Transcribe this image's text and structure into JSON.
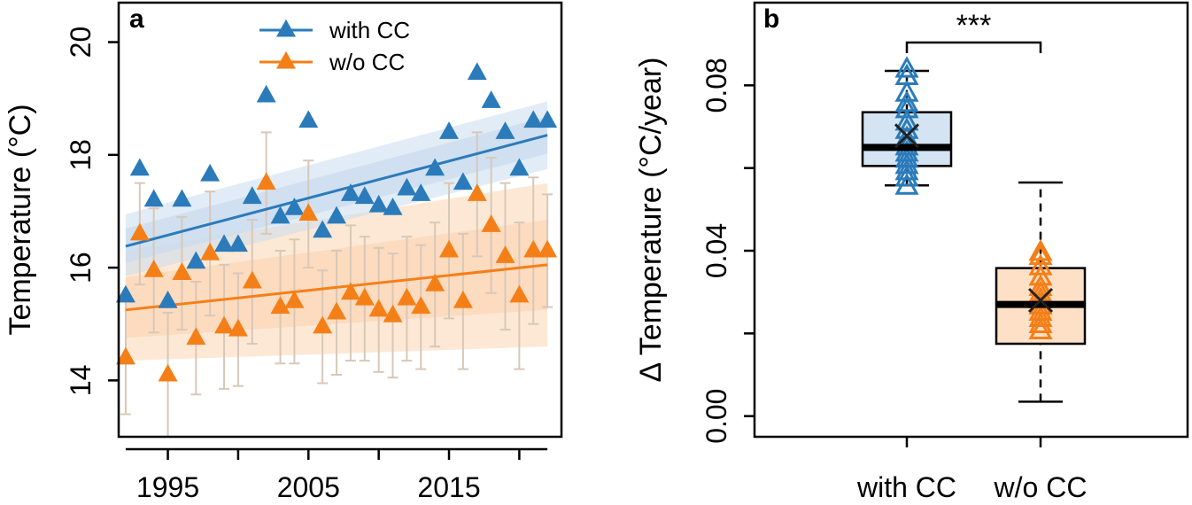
{
  "colors": {
    "with_cc": "#2b7bba",
    "wo_cc": "#f57f17",
    "with_cc_band": "#c9dcef",
    "wo_cc_band": "#fbd6b5",
    "error_bar": "#d8c8b8",
    "box_with_fill": "#d4e4f3",
    "box_wo_fill": "#fde0c6"
  },
  "chart_data": [
    {
      "type": "scatter",
      "panel": "a",
      "ylabel": "Temperature (°C)",
      "xlabel": "",
      "xlim": [
        1991.5,
        2023
      ],
      "ylim": [
        13,
        20.7
      ],
      "x_ticks": [
        1995,
        2005,
        2015
      ],
      "x_tick_labels": [
        "1995",
        "2005",
        "2015"
      ],
      "y_ticks": [
        14,
        16,
        18,
        20
      ],
      "y_tick_labels": [
        "14",
        "16",
        "18",
        "20"
      ],
      "legend": {
        "placement": "top",
        "entries": [
          "with CC",
          "w/o CC"
        ]
      },
      "x": [
        1992,
        1993,
        1994,
        1995,
        1996,
        1997,
        1998,
        1999,
        2000,
        2001,
        2002,
        2003,
        2004,
        2005,
        2006,
        2007,
        2008,
        2009,
        2010,
        2011,
        2012,
        2013,
        2014,
        2015,
        2016,
        2017,
        2018,
        2019,
        2020,
        2021,
        2022
      ],
      "series": [
        {
          "name": "with CC",
          "values": [
            15.5,
            17.75,
            17.2,
            15.4,
            17.2,
            16.1,
            17.65,
            16.4,
            16.4,
            17.25,
            19.05,
            16.9,
            17.05,
            18.6,
            16.65,
            16.9,
            17.3,
            17.25,
            17.1,
            17.05,
            17.4,
            17.3,
            17.75,
            18.4,
            17.5,
            19.45,
            18.95,
            18.4,
            17.75,
            18.6,
            18.6
          ],
          "trend": {
            "x": [
              1992,
              2022
            ],
            "y": [
              16.38,
              18.35
            ]
          },
          "band": {
            "lower": [
              15.85,
              17.75
            ],
            "upper": [
              16.95,
              18.95
            ]
          }
        },
        {
          "name": "w/o CC",
          "values": [
            14.4,
            16.6,
            15.95,
            14.1,
            15.9,
            14.75,
            16.25,
            14.95,
            14.9,
            15.75,
            17.5,
            15.3,
            15.4,
            16.95,
            14.95,
            15.2,
            15.55,
            15.45,
            15.25,
            15.15,
            15.45,
            15.3,
            15.7,
            16.3,
            15.4,
            17.3,
            16.75,
            16.2,
            15.5,
            16.3,
            16.3
          ],
          "error": [
            1.0,
            0.9,
            1.1,
            1.1,
            1.0,
            1.0,
            1.1,
            1.1,
            1.0,
            1.1,
            0.9,
            1.0,
            1.1,
            0.95,
            1.0,
            1.1,
            1.2,
            1.1,
            1.1,
            1.1,
            1.1,
            1.1,
            1.1,
            1.2,
            1.2,
            1.1,
            1.2,
            1.3,
            1.3,
            1.3,
            1.0
          ],
          "trend": {
            "x": [
              1992,
              2022
            ],
            "y": [
              15.25,
              16.05
            ]
          },
          "band": {
            "lower": [
              14.35,
              14.6
            ],
            "upper": [
              16.3,
              17.5
            ]
          }
        }
      ]
    },
    {
      "type": "box",
      "panel": "b",
      "ylabel": "Δ Temperature (°C/year)",
      "categories": [
        "with CC",
        "w/o CC"
      ],
      "ylim": [
        -0.005,
        0.1
      ],
      "y_ticks": [
        0.0,
        0.04,
        0.08
      ],
      "y_tick_labels": [
        "0.00",
        "0.04",
        "0.08"
      ],
      "significance": "***",
      "boxes": [
        {
          "name": "with CC",
          "q1": 0.0605,
          "median": 0.065,
          "q3": 0.0735,
          "whisker_low": 0.0558,
          "whisker_high": 0.0835,
          "mean": 0.0678,
          "points": [
            0.0555,
            0.0575,
            0.059,
            0.0605,
            0.062,
            0.0635,
            0.065,
            0.067,
            0.069,
            0.071,
            0.074,
            0.0755,
            0.078,
            0.082,
            0.0838
          ]
        },
        {
          "name": "w/o CC",
          "q1": 0.0175,
          "median": 0.027,
          "q3": 0.0358,
          "whisker_low": 0.0035,
          "whisker_high": 0.0565,
          "mean": 0.028,
          "points": [
            0.0205,
            0.022,
            0.0235,
            0.025,
            0.0265,
            0.028,
            0.0295,
            0.031,
            0.0335,
            0.036,
            0.0385,
            0.0395
          ]
        }
      ]
    }
  ]
}
